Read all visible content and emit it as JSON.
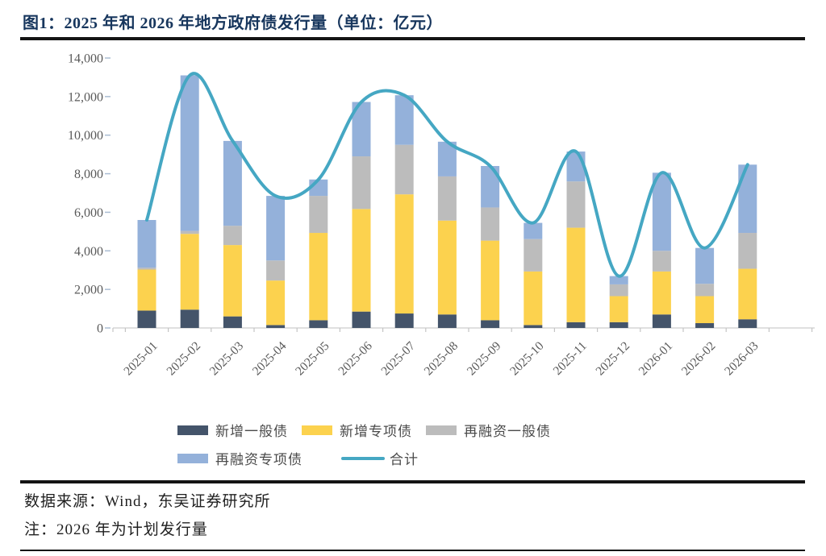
{
  "figure": {
    "title": "图1：2025 年和 2026 年地方政府债发行量（单位：亿元）",
    "source_note": "数据来源：Wind，东吴证券研究所",
    "remark": "注：2026 年为计划发行量"
  },
  "colors": {
    "title_text": "#17365d",
    "axis_text": "#595959",
    "legend_text": "#4a4a4a",
    "axis_line": "#d6d6d6",
    "axis_tick": "#c4c4c4",
    "y_tick": "#aabdd3",
    "new_general_bond": "#44546A",
    "new_special_bond": "#FCD24E",
    "refinancing_general_bond": "#BCBCBC",
    "refinancing_special_bond": "#94B1DA",
    "total_line": "#45A7C3"
  },
  "chart_data": {
    "type": "bar",
    "subtype": "stacked-bars-with-line-overlay",
    "title": "2025 年和 2026 年地方政府债发行量",
    "unit": "亿元",
    "xlabel": "",
    "ylabel": "",
    "ylim": [
      0,
      14000
    ],
    "yticks": [
      0,
      2000,
      4000,
      6000,
      8000,
      10000,
      12000,
      14000
    ],
    "grid": false,
    "legend_position": "bottom",
    "categories": [
      "2025-01",
      "2025-02",
      "2025-03",
      "2025-04",
      "2025-05",
      "2025-06",
      "2025-07",
      "2025-08",
      "2025-09",
      "2025-10",
      "2025-11",
      "2025-12",
      "2026-01",
      "2026-02",
      "2026-03"
    ],
    "series": [
      {
        "key": "new-general-bond",
        "name": "新增一般债",
        "type": "bar",
        "color": "#44546A",
        "values": [
          900,
          950,
          600,
          150,
          400,
          850,
          750,
          700,
          400,
          150,
          300,
          300,
          700,
          250,
          450
        ]
      },
      {
        "key": "new-special-bond",
        "name": "新增专项债",
        "type": "bar",
        "color": "#FCD24E",
        "values": [
          2130,
          3930,
          3700,
          2310,
          4530,
          5320,
          6180,
          4870,
          4130,
          2780,
          4900,
          1350,
          2230,
          1400,
          2620
        ]
      },
      {
        "key": "refinancing-general-bond",
        "name": "再融资一般债",
        "type": "bar",
        "color": "#BCBCBC",
        "values": [
          100,
          150,
          1000,
          1040,
          1920,
          2730,
          2570,
          2290,
          1720,
          1680,
          2400,
          610,
          1070,
          640,
          1860
        ]
      },
      {
        "key": "refinancing-special-bond",
        "name": "再融资专项债",
        "type": "bar",
        "color": "#94B1DA",
        "values": [
          2470,
          8070,
          4400,
          3350,
          850,
          2820,
          2570,
          1800,
          2150,
          840,
          1550,
          430,
          4050,
          1860,
          3540
        ]
      },
      {
        "key": "total-line",
        "name": "合计",
        "type": "line",
        "color": "#45A7C3",
        "values": [
          5600,
          13100,
          9700,
          6850,
          7700,
          11720,
          12070,
          9660,
          8400,
          5450,
          9150,
          2690,
          8050,
          4150,
          8470
        ]
      }
    ]
  }
}
